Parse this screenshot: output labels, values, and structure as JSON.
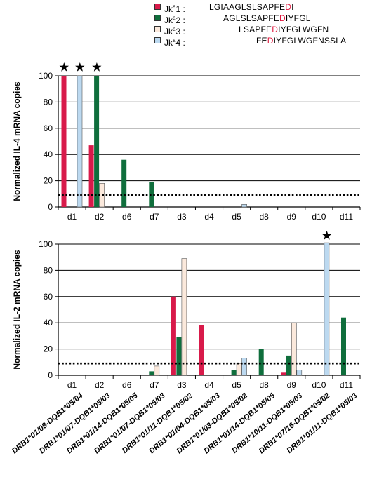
{
  "legend": [
    {
      "superscript": "a",
      "prefix": "Jk",
      "num": "1",
      "color": "#d81a4a",
      "seq_before": "LGIAAGLSLSAPFE",
      "seq_mark": "D",
      "seq_after": "I"
    },
    {
      "superscript": "a",
      "prefix": "Jk",
      "num": "2",
      "color": "#0f6e3c",
      "seq_before": "AGLSLSAPFE",
      "seq_mark": "D",
      "seq_after": "IYFGL"
    },
    {
      "superscript": "a",
      "prefix": "Jk",
      "num": "3",
      "color": "#fbe9dc",
      "seq_before": "LSAPFE",
      "seq_mark": "D",
      "seq_after": "IYFGLWGFN"
    },
    {
      "superscript": "a",
      "prefix": "Jk",
      "num": "4",
      "color": "#bcd9f0",
      "seq_before": "FE",
      "seq_mark": "D",
      "seq_after": "IYFGLWGFNSSLA"
    }
  ],
  "chart_data": [
    {
      "type": "bar",
      "ylabel": "Normalized IL-4 mRNA copies",
      "ylim": [
        0,
        100
      ],
      "yticks": [
        0,
        20,
        40,
        60,
        80,
        100
      ],
      "categories": [
        "d1",
        "d2",
        "d6",
        "d7",
        "d3",
        "d4",
        "d5",
        "d8",
        "d9",
        "d10",
        "d11"
      ],
      "threshold": 9,
      "series": [
        {
          "name": "Jka1",
          "color": "#d81a4a",
          "values": [
            100,
            47,
            0,
            0,
            0,
            0,
            0,
            0,
            0,
            0,
            0
          ]
        },
        {
          "name": "Jka2",
          "color": "#0f6e3c",
          "values": [
            0,
            100,
            36,
            19,
            0,
            0,
            0,
            0,
            0,
            0,
            0
          ]
        },
        {
          "name": "Jka3",
          "color": "#fbe9dc",
          "values": [
            0,
            18,
            0,
            0,
            0,
            0,
            0,
            0,
            0,
            0,
            0
          ]
        },
        {
          "name": "Jka4",
          "color": "#bcd9f0",
          "values": [
            100,
            0,
            0,
            0,
            0,
            0,
            2,
            0,
            0,
            0,
            0
          ]
        }
      ],
      "stars": [
        {
          "category": "d1",
          "series": "Jka1"
        },
        {
          "category": "d1",
          "series": "Jka4"
        },
        {
          "category": "d2",
          "series": "Jka2"
        }
      ]
    },
    {
      "type": "bar",
      "ylabel": "Normalized IL-2 mRNA copies",
      "ylim": [
        0,
        100
      ],
      "yticks": [
        0,
        20,
        40,
        60,
        80,
        100
      ],
      "categories": [
        "d1",
        "d2",
        "d6",
        "d7",
        "d3",
        "d4",
        "d5",
        "d8",
        "d9",
        "d10",
        "d11"
      ],
      "threshold": 9,
      "series": [
        {
          "name": "Jka1",
          "color": "#d81a4a",
          "values": [
            0,
            0,
            0,
            0,
            60,
            38,
            0,
            0,
            2,
            0,
            0
          ]
        },
        {
          "name": "Jka2",
          "color": "#0f6e3c",
          "values": [
            0,
            0,
            0,
            3,
            29,
            0,
            4,
            20,
            15,
            0,
            44
          ]
        },
        {
          "name": "Jka3",
          "color": "#fbe9dc",
          "values": [
            0,
            0,
            0,
            7,
            89,
            0,
            9,
            0,
            40,
            0,
            0
          ]
        },
        {
          "name": "Jka4",
          "color": "#bcd9f0",
          "values": [
            0,
            0,
            0,
            0,
            0,
            0,
            13,
            0,
            4,
            101,
            0
          ]
        }
      ],
      "stars": [
        {
          "category": "d10",
          "series": "Jka4"
        }
      ],
      "donor_labels": [
        "DRB1*01/08-DQB1*05/04",
        "DRB1*01/07-DQB1*05/03",
        "DRB1*01/14-DQB1*05/05",
        "DRB1*01/07-DQB1*05/03",
        "DRB1*01/11-DQB1*05/02",
        "DRB1*01/04-DQB1*05/03",
        "DRB1*01/03-DQB1*05/02",
        "DRB1*01/14-DQB1*05/05",
        "DRB1*10/11-DQB1*05/03",
        "DRB1*07/16-DQB1*05/02",
        "DRB1*01/11-DQB1*05/03"
      ]
    }
  ]
}
